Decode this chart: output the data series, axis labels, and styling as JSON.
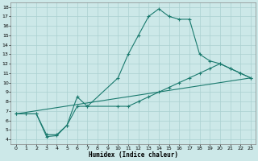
{
  "xlabel": "Humidex (Indice chaleur)",
  "ylabel": "",
  "bg_color": "#cce8e8",
  "line_color": "#1a7a6e",
  "grid_color": "#aad0d0",
  "xlim": [
    -0.5,
    23.5
  ],
  "ylim": [
    3.5,
    18.5
  ],
  "xticks": [
    0,
    1,
    2,
    3,
    4,
    5,
    6,
    7,
    8,
    9,
    10,
    11,
    12,
    13,
    14,
    15,
    16,
    17,
    18,
    19,
    20,
    21,
    22,
    23
  ],
  "yticks": [
    4,
    5,
    6,
    7,
    8,
    9,
    10,
    11,
    12,
    13,
    14,
    15,
    16,
    17,
    18
  ],
  "line1_x": [
    0,
    1,
    2,
    3,
    4,
    5,
    6,
    7,
    10,
    11,
    12,
    13,
    14,
    15,
    16,
    17,
    18,
    19,
    20,
    21,
    22,
    23
  ],
  "line1_y": [
    6.7,
    6.7,
    6.7,
    4.5,
    4.5,
    5.5,
    8.5,
    7.5,
    10.5,
    13.0,
    15.0,
    17.0,
    17.8,
    17.0,
    16.7,
    16.7,
    13.0,
    12.3,
    12.0,
    11.5,
    11.0,
    10.5
  ],
  "line2_x": [
    0,
    1,
    2,
    3,
    4,
    5,
    6,
    7,
    10,
    11,
    12,
    13,
    14,
    15,
    16,
    17,
    18,
    19,
    20,
    21,
    22,
    23
  ],
  "line2_y": [
    6.7,
    6.7,
    6.7,
    4.3,
    4.4,
    5.5,
    7.5,
    7.5,
    7.5,
    7.5,
    8.0,
    8.5,
    9.0,
    9.5,
    10.0,
    10.5,
    11.0,
    11.5,
    12.0,
    11.5,
    11.0,
    10.5
  ],
  "line3_x": [
    0,
    23
  ],
  "line3_y": [
    6.7,
    10.5
  ]
}
